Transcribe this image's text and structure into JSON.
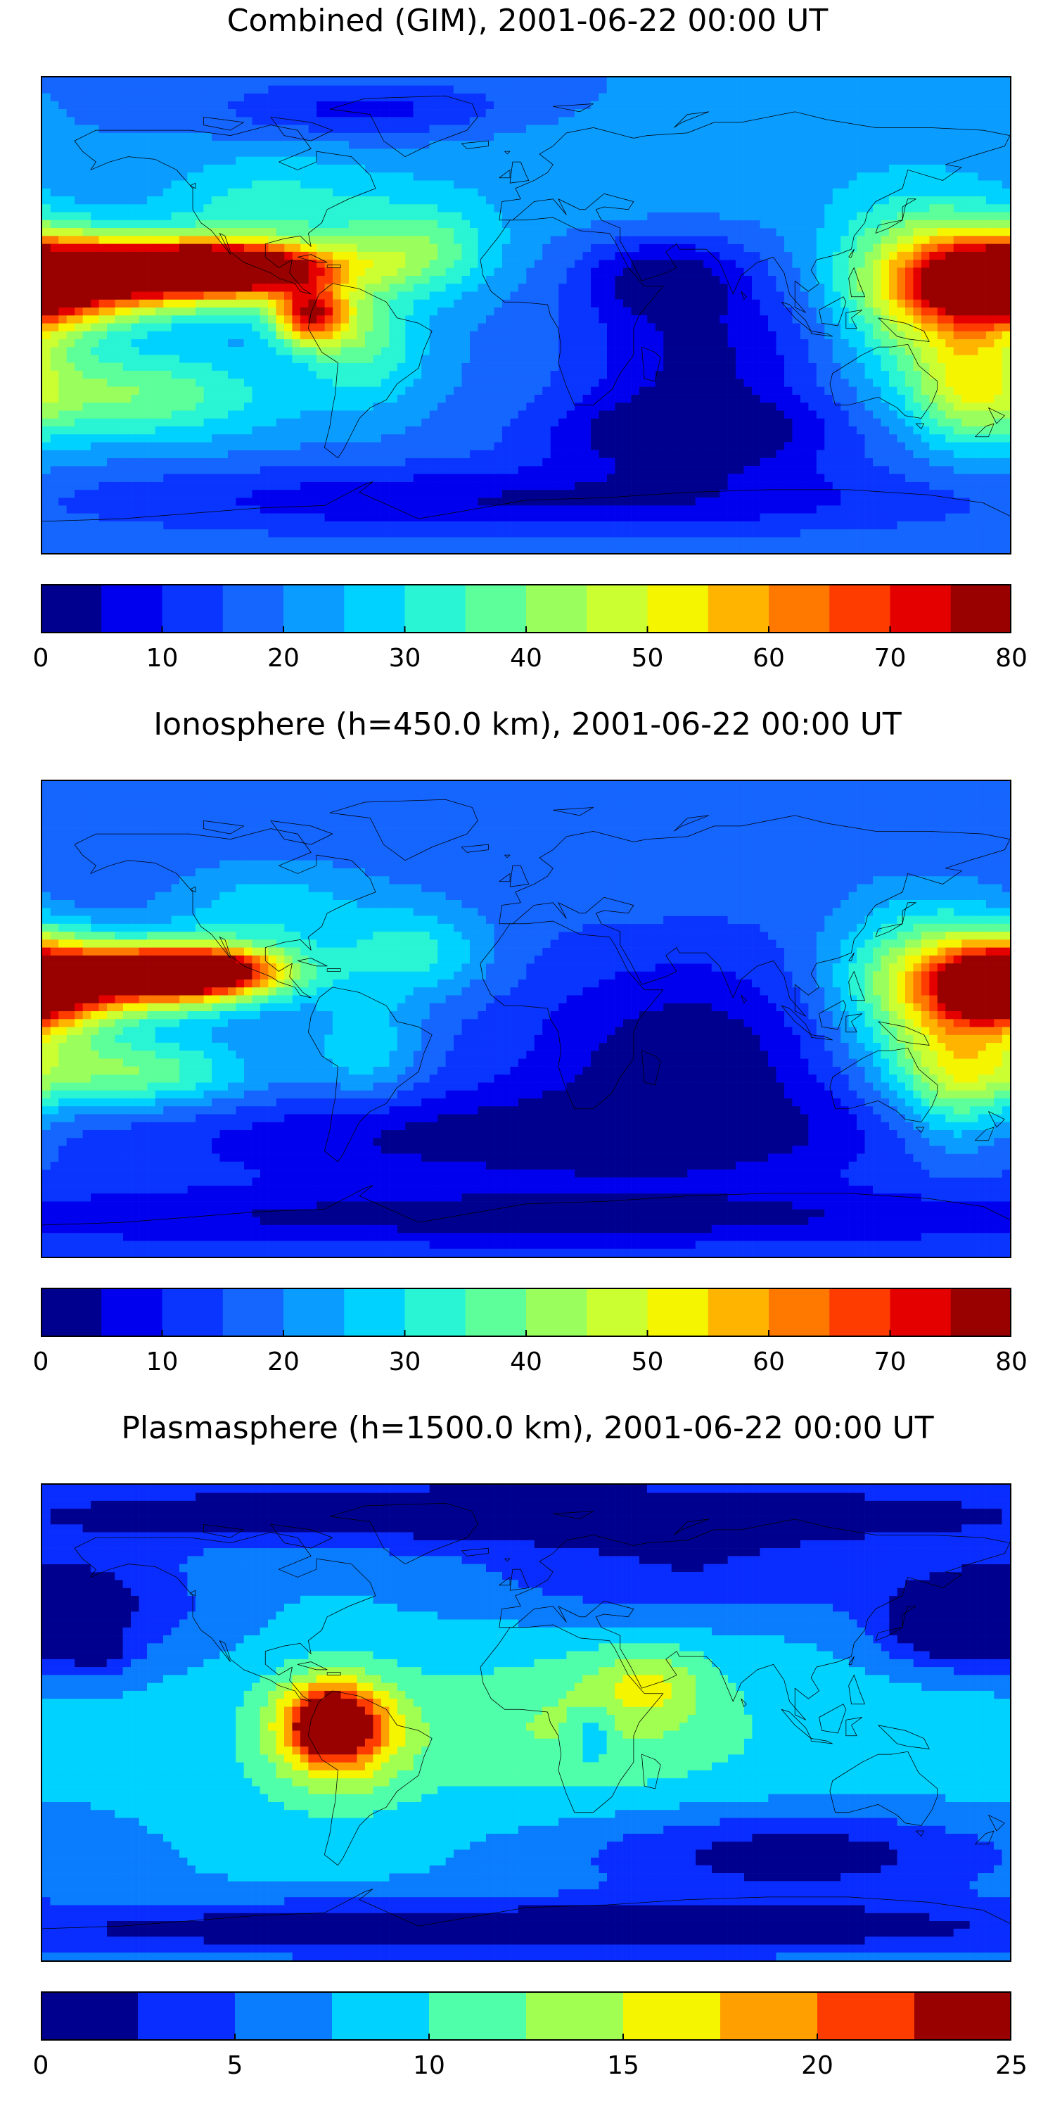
{
  "chart_data": [
    {
      "type": "heatmap",
      "title": "Combined (GIM), 2001-06-22 00:00 UT",
      "levels": [
        0,
        5,
        10,
        15,
        20,
        25,
        30,
        35,
        40,
        45,
        50,
        55,
        60,
        65,
        70,
        75,
        80
      ],
      "colors": [
        "#00008f",
        "#0000ee",
        "#0a35ff",
        "#1565ff",
        "#0a9cff",
        "#00d2ff",
        "#29f5d4",
        "#5cff9a",
        "#9aff5c",
        "#ccff32",
        "#f5f500",
        "#ffb400",
        "#ff7800",
        "#ff3c00",
        "#e50000",
        "#990000"
      ],
      "colorbar_ticks": [
        "0",
        "10",
        "20",
        "30",
        "40",
        "50",
        "60",
        "70",
        "80"
      ],
      "background_level": 20,
      "blobs": [
        {
          "region": "central-pacific-crest",
          "lon": -115,
          "lat": 18,
          "value": 78,
          "sx": 30,
          "sy": 6
        },
        {
          "region": "pacific-crest-band",
          "lon": -140,
          "lat": 15,
          "value": 66,
          "sx": 40,
          "sy": 10
        },
        {
          "region": "pacific-anomaly-south",
          "lon": -80,
          "lat": 0,
          "value": 66,
          "sx": 10,
          "sy": 8
        },
        {
          "region": "date-line-east",
          "lon": 178,
          "lat": 12,
          "value": 66,
          "sx": 22,
          "sy": 12
        },
        {
          "region": "west-pacific-band",
          "lon": 150,
          "lat": 12,
          "value": 50,
          "sx": 25,
          "sy": 22
        },
        {
          "region": "australia-east",
          "lon": 165,
          "lat": -25,
          "value": 38,
          "sx": 15,
          "sy": 18
        },
        {
          "region": "south-pacific",
          "lon": -150,
          "lat": -30,
          "value": 40,
          "sx": 40,
          "sy": 12
        },
        {
          "region": "south-america",
          "lon": -60,
          "lat": -10,
          "value": 36,
          "sx": 15,
          "sy": 15
        },
        {
          "region": "north-atlantic",
          "lon": -40,
          "lat": 25,
          "value": 38,
          "sx": 20,
          "sy": 12
        },
        {
          "region": "north-america",
          "lon": -95,
          "lat": 40,
          "value": 32,
          "sx": 30,
          "sy": 15
        },
        {
          "region": "eurasia",
          "lon": 40,
          "lat": 55,
          "value": 25,
          "sx": 60,
          "sy": 15
        },
        {
          "region": "indian-ocean-low",
          "lon": 65,
          "lat": -15,
          "value": 4,
          "sx": 35,
          "sy": 25
        },
        {
          "region": "arabia-low",
          "lon": 50,
          "lat": 15,
          "value": 6,
          "sx": 20,
          "sy": 10
        },
        {
          "region": "arctic-low",
          "lon": -60,
          "lat": 78,
          "value": 8,
          "sx": 40,
          "sy": 8
        },
        {
          "region": "antarctic-low",
          "lon": 0,
          "lat": -70,
          "value": 5,
          "sx": 120,
          "sy": 10
        },
        {
          "region": "southern-ocean-low",
          "lon": 60,
          "lat": -45,
          "value": 4,
          "sx": 40,
          "sy": 10
        }
      ]
    },
    {
      "type": "heatmap",
      "title": "Ionosphere  (h=450.0 km), 2001-06-22 00:00 UT",
      "levels": [
        0,
        5,
        10,
        15,
        20,
        25,
        30,
        35,
        40,
        45,
        50,
        55,
        60,
        65,
        70,
        75,
        80
      ],
      "colors": [
        "#00008f",
        "#0000ee",
        "#0a35ff",
        "#1565ff",
        "#0a9cff",
        "#00d2ff",
        "#29f5d4",
        "#5cff9a",
        "#9aff5c",
        "#ccff32",
        "#f5f500",
        "#ffb400",
        "#ff7800",
        "#ff3c00",
        "#e50000",
        "#990000"
      ],
      "colorbar_ticks": [
        "0",
        "10",
        "20",
        "30",
        "40",
        "50",
        "60",
        "70",
        "80"
      ],
      "background_level": 15,
      "blobs": [
        {
          "region": "central-pacific-crest",
          "lon": -125,
          "lat": 18,
          "value": 74,
          "sx": 22,
          "sy": 6
        },
        {
          "region": "pacific-crest-band",
          "lon": -145,
          "lat": 15,
          "value": 60,
          "sx": 35,
          "sy": 10
        },
        {
          "region": "date-line-east",
          "lon": 178,
          "lat": 12,
          "value": 64,
          "sx": 18,
          "sy": 12
        },
        {
          "region": "west-pacific-band",
          "lon": 150,
          "lat": 12,
          "value": 46,
          "sx": 25,
          "sy": 22
        },
        {
          "region": "south-pacific",
          "lon": -150,
          "lat": -20,
          "value": 40,
          "sx": 35,
          "sy": 10
        },
        {
          "region": "south-america",
          "lon": -60,
          "lat": -10,
          "value": 28,
          "sx": 15,
          "sy": 15
        },
        {
          "region": "north-atlantic",
          "lon": -40,
          "lat": 25,
          "value": 30,
          "sx": 20,
          "sy": 12
        },
        {
          "region": "north-america",
          "lon": -95,
          "lat": 40,
          "value": 28,
          "sx": 30,
          "sy": 15
        },
        {
          "region": "australia-east",
          "lon": 160,
          "lat": -25,
          "value": 34,
          "sx": 15,
          "sy": 18
        },
        {
          "region": "eurasia",
          "lon": 40,
          "lat": 55,
          "value": 18,
          "sx": 60,
          "sy": 15
        },
        {
          "region": "indian-ocean-low",
          "lon": 60,
          "lat": -15,
          "value": 1,
          "sx": 40,
          "sy": 25
        },
        {
          "region": "southern-ocean-low",
          "lon": 0,
          "lat": -45,
          "value": 2,
          "sx": 90,
          "sy": 12
        },
        {
          "region": "antarctic-low",
          "lon": 0,
          "lat": -75,
          "value": 3,
          "sx": 160,
          "sy": 8
        }
      ]
    },
    {
      "type": "heatmap",
      "title": "Plasmasphere (h=1500.0 km), 2001-06-22 00:00 UT",
      "levels": [
        0,
        2.5,
        5,
        7.5,
        10,
        12.5,
        15,
        17.5,
        20,
        22.5,
        25
      ],
      "colors": [
        "#00008f",
        "#0a2dff",
        "#0a7dff",
        "#00d2ff",
        "#50ffaa",
        "#a0ff50",
        "#f5f500",
        "#ffa000",
        "#ff3c00",
        "#990000"
      ],
      "colorbar_ticks": [
        "0",
        "5",
        "10",
        "15",
        "20",
        "25"
      ],
      "background_level": 8,
      "blobs": [
        {
          "region": "south-america-crest",
          "lon": -72,
          "lat": 0,
          "value": 23,
          "sx": 12,
          "sy": 10
        },
        {
          "region": "south-america-band",
          "lon": -70,
          "lat": -5,
          "value": 16,
          "sx": 20,
          "sy": 17
        },
        {
          "region": "central-africa",
          "lon": 20,
          "lat": 0,
          "value": 12,
          "sx": 40,
          "sy": 18
        },
        {
          "region": "east-africa",
          "lon": 45,
          "lat": 15,
          "value": 13,
          "sx": 15,
          "sy": 10
        },
        {
          "region": "tropical-band",
          "lon": 0,
          "lat": -10,
          "value": 9,
          "sx": 180,
          "sy": 22
        },
        {
          "region": "africa-local-low",
          "lon": 25,
          "lat": -5,
          "value": 4,
          "sx": 6,
          "sy": 8
        },
        {
          "region": "pacific-tropics",
          "lon": -155,
          "lat": -10,
          "value": 7,
          "sx": 25,
          "sy": 15
        },
        {
          "region": "north-pacific-low",
          "lon": -170,
          "lat": 45,
          "value": 1,
          "sx": 35,
          "sy": 15
        },
        {
          "region": "north-pacific-cell",
          "lon": -160,
          "lat": 25,
          "value": 4,
          "sx": 10,
          "sy": 6
        },
        {
          "region": "west-pacific-low",
          "lon": 160,
          "lat": 35,
          "value": 1,
          "sx": 20,
          "sy": 10
        },
        {
          "region": "arctic-low",
          "lon": 0,
          "lat": 80,
          "value": 0,
          "sx": 180,
          "sy": 10
        },
        {
          "region": "north-eurasia",
          "lon": 60,
          "lat": 55,
          "value": 3,
          "sx": 60,
          "sy": 12
        },
        {
          "region": "southern-ocean-low",
          "lon": 100,
          "lat": -50,
          "value": 1,
          "sx": 60,
          "sy": 12
        },
        {
          "region": "antarctic-low",
          "lon": 0,
          "lat": -78,
          "value": 0,
          "sx": 180,
          "sy": 8
        }
      ]
    }
  ]
}
